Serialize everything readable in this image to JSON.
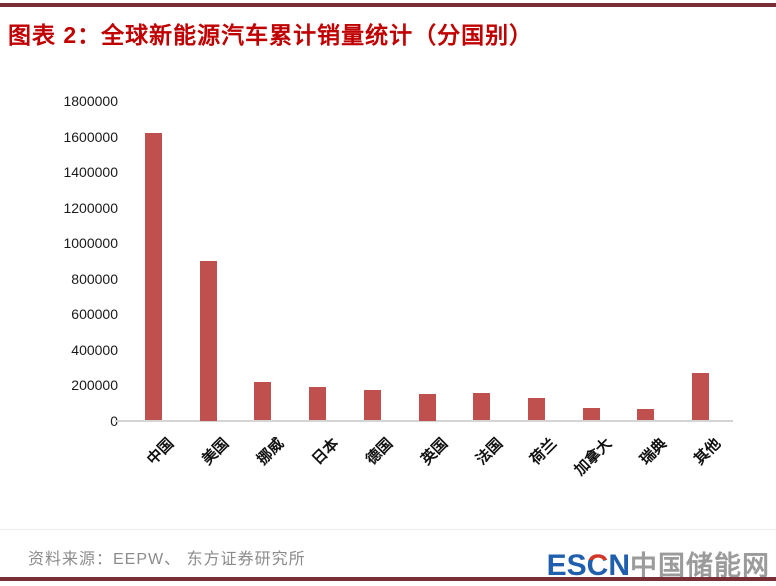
{
  "header": {
    "title": "图表 2：全球新能源汽车累计销量统计（分国别）"
  },
  "chart_data": {
    "type": "bar",
    "title": "全球新能源汽车累计销量统计（分国别）",
    "categories": [
      "中国",
      "美国",
      "挪威",
      "日本",
      "德国",
      "英国",
      "法国",
      "荷兰",
      "加拿大",
      "瑞典",
      "其他"
    ],
    "values": [
      1620000,
      900000,
      215000,
      186000,
      170000,
      150000,
      155000,
      128000,
      73000,
      65000,
      267000
    ],
    "xlabel": "",
    "ylabel": "",
    "ylim": [
      0,
      1800000
    ],
    "ytick_step": 200000,
    "ytick_labels": [
      "1800000",
      "1600000",
      "1400000",
      "1200000",
      "1000000",
      "800000",
      "600000",
      "400000",
      "200000",
      "0"
    ],
    "grid": false,
    "legend": null,
    "bar_color": "#C0504D",
    "axis_line_color": "#D4D4D4"
  },
  "footer": {
    "source": "资料来源：EEPW、 东方证券研究所",
    "logo": {
      "part_es": "ES",
      "part_c": "C",
      "part_n": "N",
      "part_cjk": "中国储能网"
    }
  }
}
